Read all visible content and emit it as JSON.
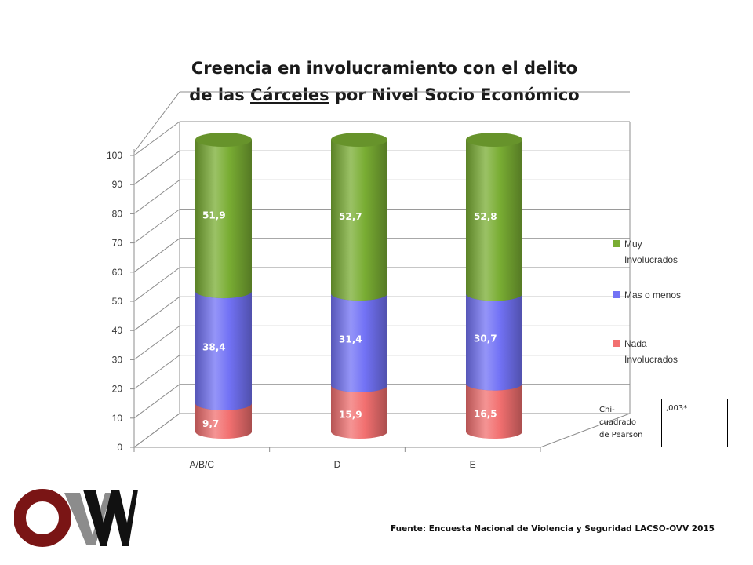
{
  "title": {
    "line1": "Creencia en involucramiento con el delito",
    "line2_pre": "de las ",
    "line2_underlined": "Cárceles",
    "line2_post": " por Nivel Socio Económico"
  },
  "chart_data": {
    "type": "bar",
    "stacked": true,
    "three_d": true,
    "categories": [
      "A/B/C",
      "D",
      "E"
    ],
    "series": [
      {
        "name": "Nada Involucrados",
        "values": [
          9.7,
          15.9,
          16.5
        ],
        "labels": [
          "9,7",
          "15,9",
          "16,5"
        ],
        "color": "#f27070"
      },
      {
        "name": "Mas o menos",
        "values": [
          38.4,
          31.4,
          30.7
        ],
        "labels": [
          "38,4",
          "31,4",
          "30,7"
        ],
        "color": "#7272f5"
      },
      {
        "name": "Muy Involucrados",
        "values": [
          51.9,
          52.7,
          52.8
        ],
        "labels": [
          "51,9",
          "52,7",
          "52,8"
        ],
        "color": "#79ad33"
      }
    ],
    "legend": [
      {
        "line1": "Muy",
        "line2": "Involucrados",
        "color": "#79ad33"
      },
      {
        "line1": "Mas o menos",
        "line2": "",
        "color": "#7272f5"
      },
      {
        "line1": "Nada",
        "line2": "Involucrados",
        "color": "#f27070"
      }
    ],
    "legend_position": "right",
    "yticks": [
      "0",
      "10",
      "20",
      "30",
      "40",
      "50",
      "60",
      "70",
      "80",
      "90",
      "100"
    ],
    "ylim": [
      0,
      100
    ],
    "grid": true
  },
  "stats": {
    "label": [
      "Chi-",
      "cuadrado",
      "de Pearson"
    ],
    "value": ",003*"
  },
  "source": "Fuente: Encuesta Nacional de Violencia y Seguridad LACSO-OVV 2015",
  "colors": {
    "logo_red": "#7a1515",
    "logo_gray": "#8c8c8c",
    "logo_black": "#111111"
  }
}
